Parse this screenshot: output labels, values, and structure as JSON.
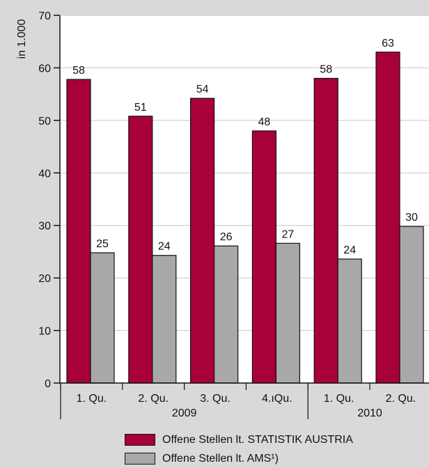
{
  "chart_data": {
    "type": "bar",
    "ylabel": "in 1.000",
    "ylim": [
      0,
      70
    ],
    "yticks": [
      0,
      10,
      20,
      30,
      40,
      50,
      60,
      70
    ],
    "categories": [
      "1. Qu.",
      "2. Qu.",
      "3. Qu.",
      "4.ıQu.",
      "1. Qu.",
      "2. Qu."
    ],
    "groups": [
      {
        "label": "2009",
        "categories": 4
      },
      {
        "label": "2010",
        "categories": 2
      }
    ],
    "series": [
      {
        "name": "Offene Stellen lt. STATISTIK AUSTRIA",
        "values": [
          58,
          51,
          54,
          48,
          58,
          63
        ],
        "heights": [
          57.8,
          50.8,
          54.2,
          48.0,
          58.0,
          63.0
        ],
        "color": "#a8003a"
      },
      {
        "name": "Offene Stellen lt. AMS¹)",
        "values": [
          25,
          24,
          26,
          27,
          24,
          30
        ],
        "heights": [
          24.8,
          24.3,
          26.1,
          26.6,
          23.6,
          29.8
        ],
        "color": "#a8a8a8"
      }
    ],
    "grid": true,
    "legend_position": "bottom"
  }
}
